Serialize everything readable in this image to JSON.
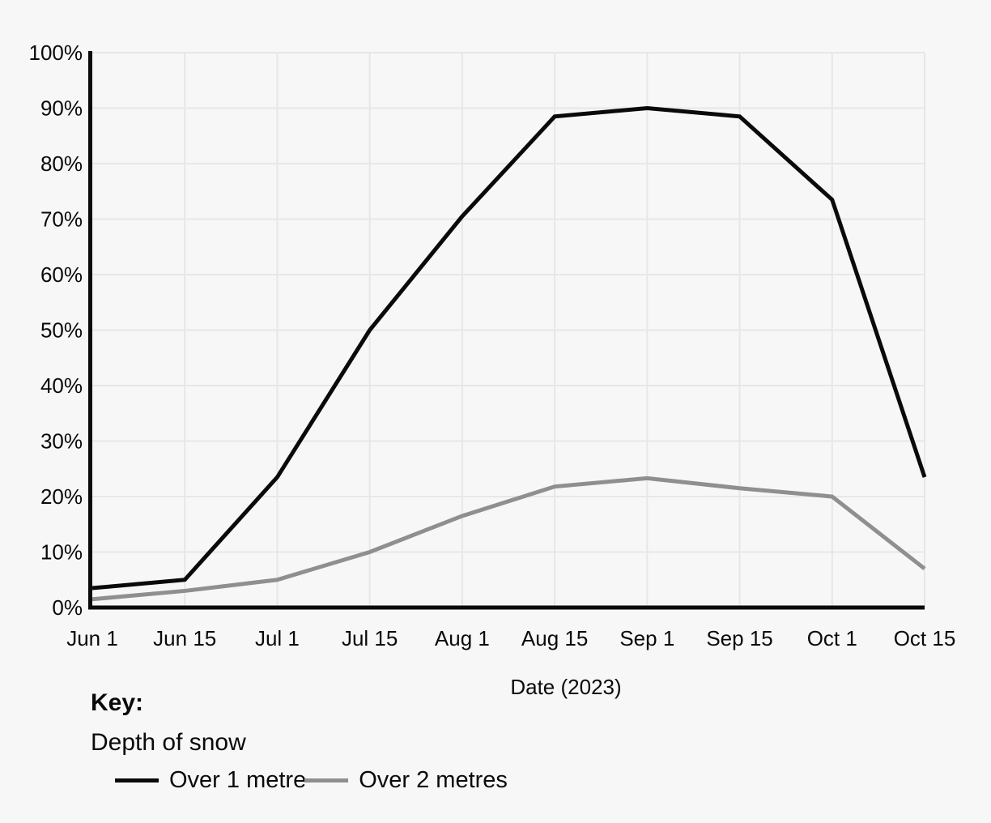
{
  "chart_data": {
    "type": "line",
    "title": "",
    "xlabel": "Date (2023)",
    "ylabel": "",
    "ylim": [
      0,
      100
    ],
    "ytick_step": 10,
    "ytick_suffix": "%",
    "grid": true,
    "legend_position": "bottom",
    "categories": [
      "Jun 1",
      "Jun 15",
      "Jul 1",
      "Jul 15",
      "Aug 1",
      "Aug 15",
      "Sep 1",
      "Sep 15",
      "Oct 1",
      "Oct 15"
    ],
    "series": [
      {
        "name": "Over 1 metre",
        "color": "#0a0a0a",
        "values": [
          3.5,
          5,
          23.5,
          50,
          70.5,
          88.5,
          90,
          88.5,
          73.5,
          23.5
        ]
      },
      {
        "name": "Over 2 metres",
        "color": "#8f8f8f",
        "values": [
          1.5,
          3,
          5,
          10,
          16.5,
          21.8,
          23.3,
          21.5,
          20,
          7
        ]
      }
    ]
  },
  "legend": {
    "title": "Key:",
    "subtitle": "Depth of snow",
    "items": [
      {
        "label": "Over 1 metre",
        "color": "#0a0a0a"
      },
      {
        "label": "Over 2 metres",
        "color": "#8f8f8f"
      }
    ]
  },
  "colors": {
    "background": "#f7f7f7",
    "grid": "#e7e7e7",
    "axis": "#0a0a0a",
    "text": "#0a0a0a"
  }
}
